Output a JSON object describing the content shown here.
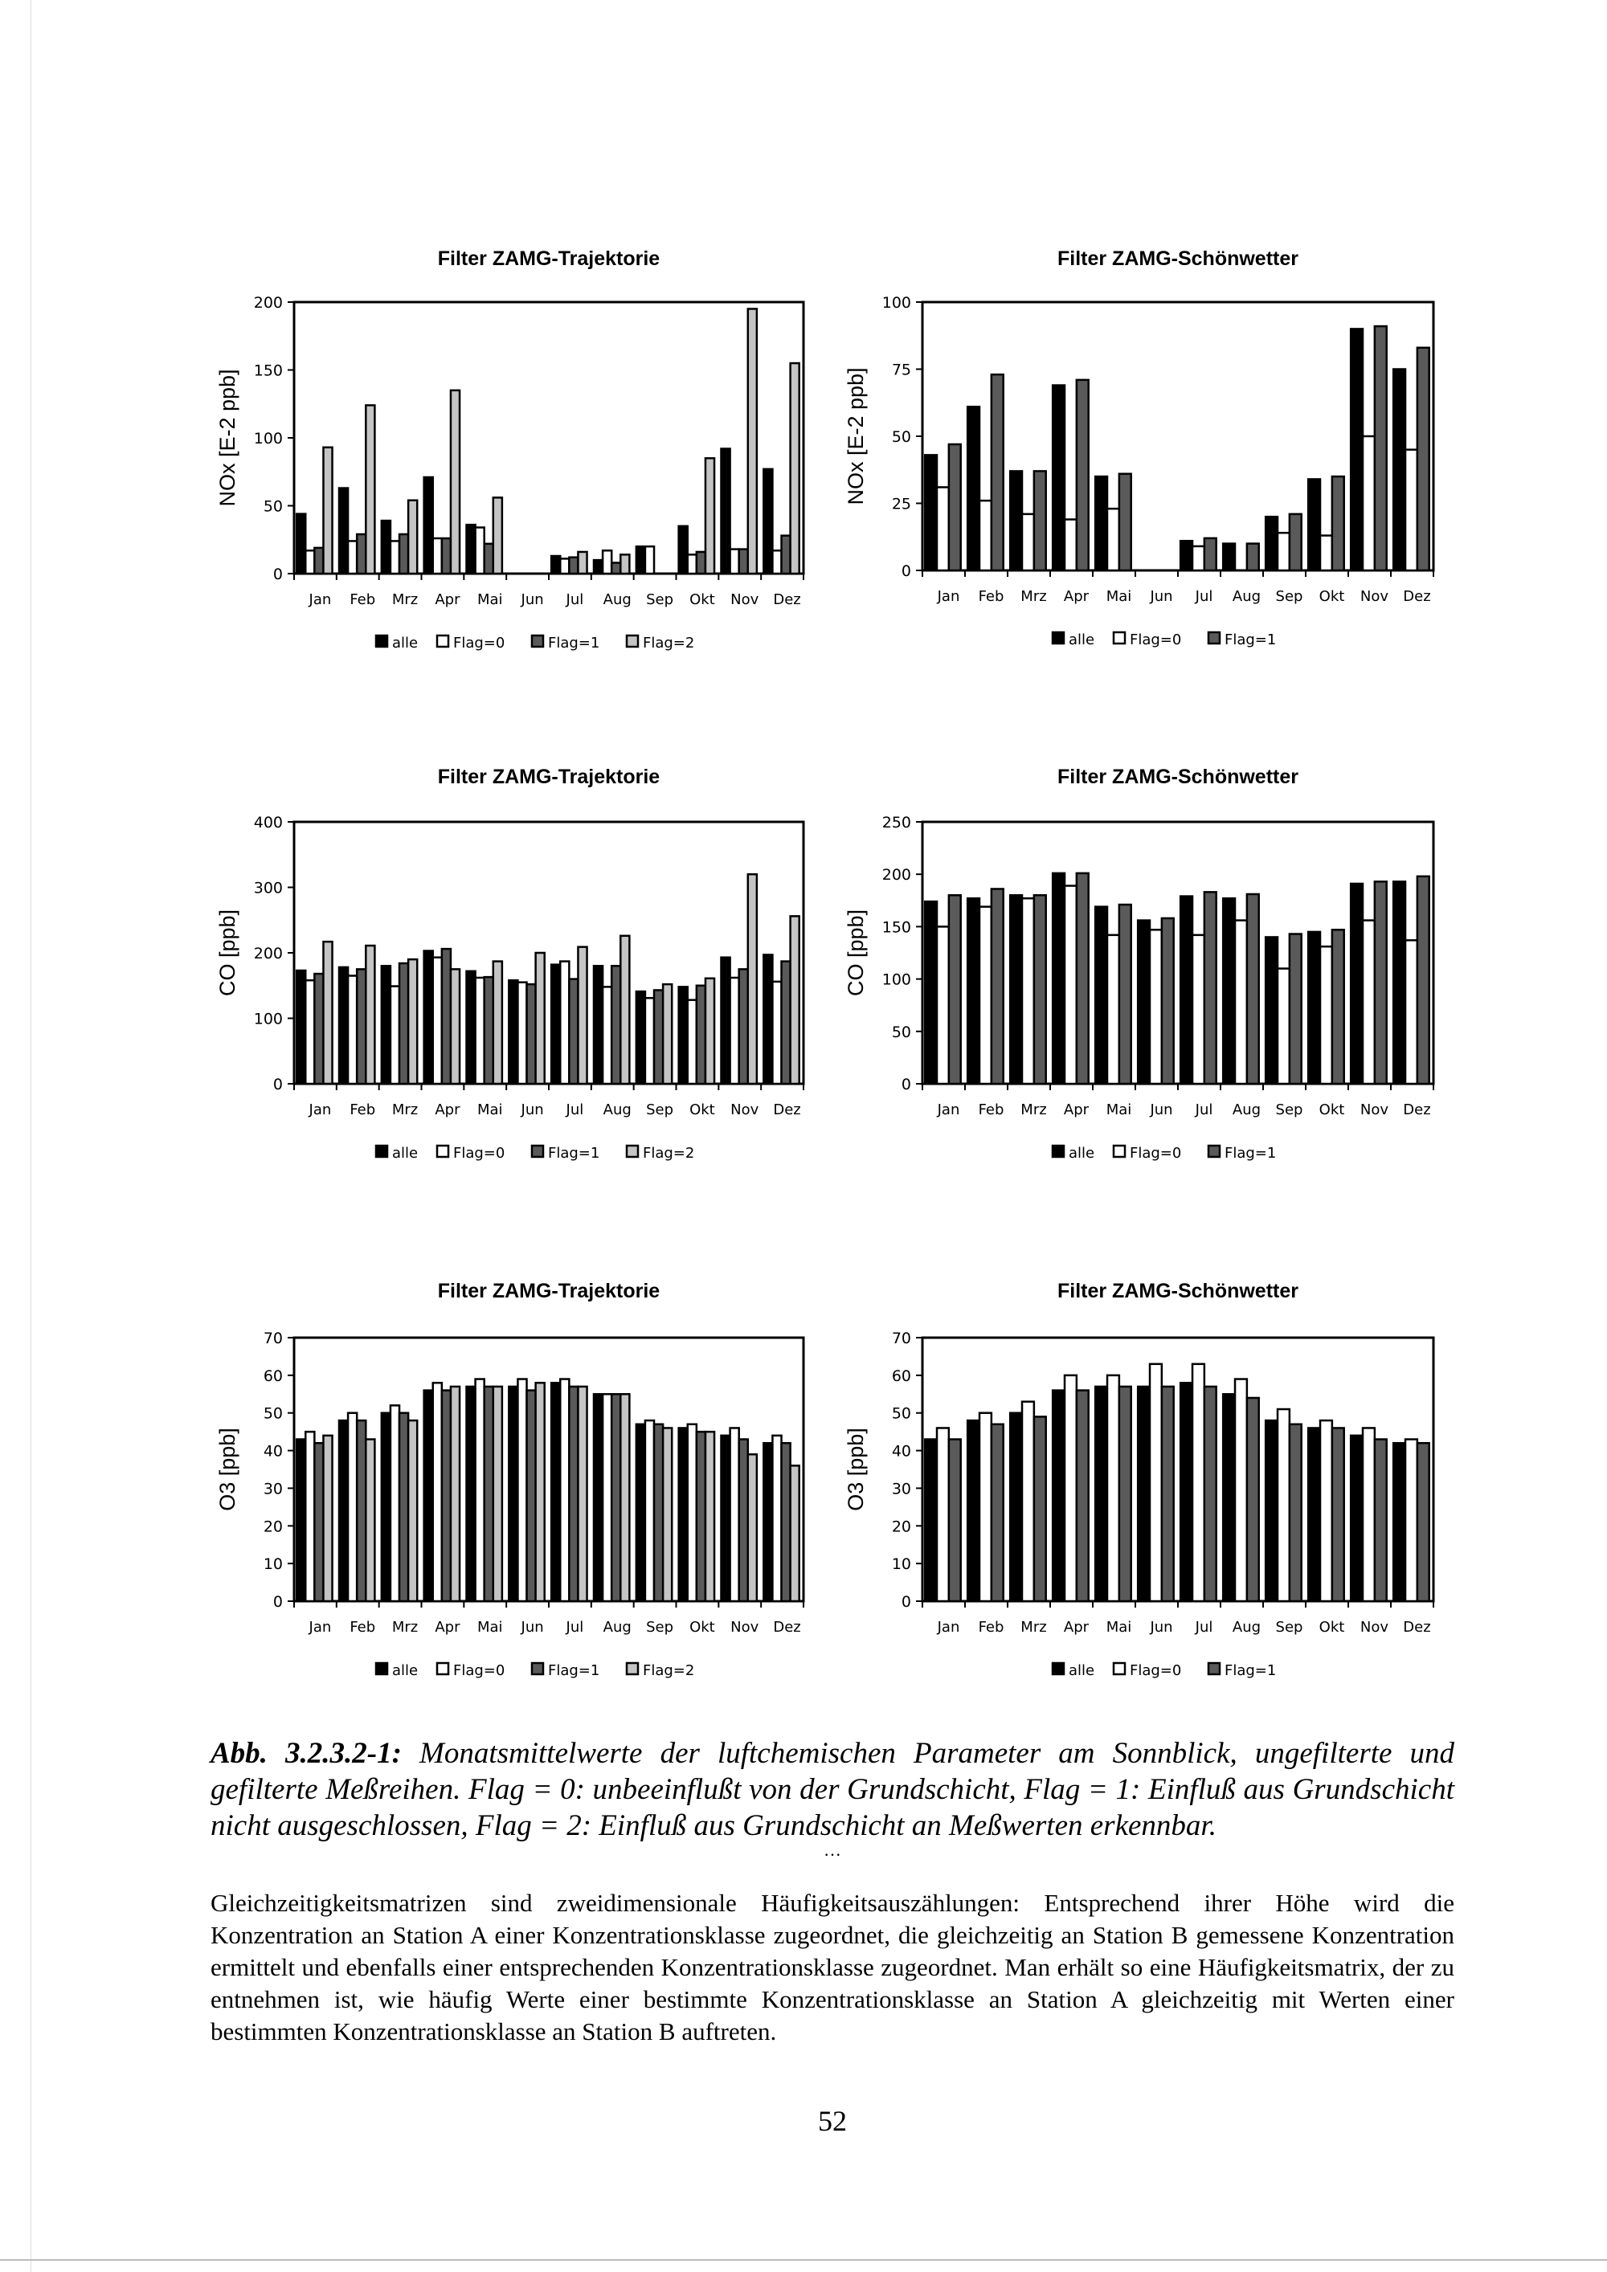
{
  "months": [
    "Jan",
    "Feb",
    "Mrz",
    "Apr",
    "Mai",
    "Jun",
    "Jul",
    "Aug",
    "Sep",
    "Okt",
    "Nov",
    "Dez"
  ],
  "colors": {
    "alle": "#000000",
    "flag0": "#ffffff",
    "flag1": "#5a5a5a",
    "flag2": "#c4c4c4"
  },
  "chart_data": [
    {
      "type": "bar",
      "title": "Filter ZAMG-Trajektorie",
      "ylabel": "NOx [E-2 ppb]",
      "ylim": [
        0,
        200
      ],
      "yticks": [
        0,
        50,
        100,
        150,
        200
      ],
      "ytick_labels": [
        "0",
        "50",
        "100",
        "150",
        "200"
      ],
      "legend": [
        "alle",
        "Flag=0",
        "Flag=1",
        "Flag=2"
      ],
      "legend_position": "bottom",
      "series": [
        {
          "name": "alle",
          "values": [
            44,
            63,
            39,
            71,
            36,
            0,
            13,
            10,
            20,
            35,
            92,
            77
          ]
        },
        {
          "name": "Flag=0",
          "values": [
            17,
            24,
            24,
            26,
            34,
            0,
            11,
            17,
            20,
            14,
            18,
            17
          ]
        },
        {
          "name": "Flag=1",
          "values": [
            19,
            29,
            29,
            26,
            22,
            0,
            12,
            8,
            0,
            16,
            18,
            28
          ]
        },
        {
          "name": "Flag=2",
          "values": [
            93,
            124,
            54,
            135,
            56,
            0,
            16,
            14,
            0,
            85,
            195,
            155
          ]
        }
      ]
    },
    {
      "type": "bar",
      "title": "Filter ZAMG-Schönwetter",
      "ylabel": "NOx [E-2 ppb]",
      "ylim": [
        0,
        100
      ],
      "yticks": [
        0,
        25,
        50,
        75,
        100
      ],
      "ytick_labels": [
        "0",
        "25",
        "50",
        "75",
        "100"
      ],
      "legend": [
        "alle",
        "Flag=0",
        "Flag=1"
      ],
      "legend_position": "bottom",
      "series": [
        {
          "name": "alle",
          "values": [
            43,
            61,
            37,
            69,
            35,
            0,
            11,
            10,
            20,
            34,
            90,
            75
          ]
        },
        {
          "name": "Flag=0",
          "values": [
            31,
            26,
            21,
            19,
            23,
            0,
            9,
            0,
            14,
            13,
            50,
            45
          ]
        },
        {
          "name": "Flag=1",
          "values": [
            47,
            73,
            37,
            71,
            36,
            0,
            12,
            10,
            21,
            35,
            91,
            83
          ]
        }
      ]
    },
    {
      "type": "bar",
      "title": "Filter ZAMG-Trajektorie",
      "ylabel": "CO [ppb]",
      "ylim": [
        0,
        400
      ],
      "yticks": [
        0,
        100,
        200,
        300,
        400
      ],
      "ytick_labels": [
        "0",
        "100",
        "200",
        "300",
        "400"
      ],
      "legend": [
        "alle",
        "Flag=0",
        "Flag=1",
        "Flag=2"
      ],
      "legend_position": "bottom",
      "series": [
        {
          "name": "alle",
          "values": [
            173,
            178,
            180,
            203,
            172,
            158,
            182,
            180,
            141,
            148,
            193,
            197
          ]
        },
        {
          "name": "Flag=0",
          "values": [
            158,
            165,
            149,
            193,
            162,
            155,
            187,
            148,
            131,
            128,
            162,
            156
          ]
        },
        {
          "name": "Flag=1",
          "values": [
            168,
            175,
            184,
            206,
            163,
            152,
            160,
            180,
            143,
            150,
            175,
            187
          ]
        },
        {
          "name": "Flag=2",
          "values": [
            217,
            211,
            190,
            175,
            187,
            200,
            209,
            226,
            152,
            161,
            320,
            256
          ]
        }
      ]
    },
    {
      "type": "bar",
      "title": "Filter ZAMG-Schönwetter",
      "ylabel": "CO [ppb]",
      "ylim": [
        0,
        250
      ],
      "yticks": [
        0,
        50,
        100,
        150,
        200,
        250
      ],
      "ytick_labels": [
        "0",
        "50",
        "100",
        "150",
        "200",
        "250"
      ],
      "legend": [
        "alle",
        "Flag=0",
        "Flag=1"
      ],
      "legend_position": "bottom",
      "series": [
        {
          "name": "alle",
          "values": [
            174,
            177,
            180,
            201,
            169,
            156,
            179,
            177,
            140,
            145,
            191,
            193
          ]
        },
        {
          "name": "Flag=0",
          "values": [
            150,
            169,
            177,
            189,
            142,
            147,
            142,
            156,
            110,
            131,
            156,
            137
          ]
        },
        {
          "name": "Flag=1",
          "values": [
            180,
            186,
            180,
            201,
            171,
            158,
            183,
            181,
            143,
            147,
            193,
            198
          ]
        }
      ]
    },
    {
      "type": "bar",
      "title": "Filter ZAMG-Trajektorie",
      "ylabel": "O3 [ppb]",
      "ylim": [
        0,
        70
      ],
      "yticks": [
        0,
        10,
        20,
        30,
        40,
        50,
        60,
        70
      ],
      "ytick_labels": [
        "0",
        "10",
        "20",
        "30",
        "40",
        "50",
        "60",
        "70"
      ],
      "legend": [
        "alle",
        "Flag=0",
        "Flag=1",
        "Flag=2"
      ],
      "legend_position": "bottom",
      "series": [
        {
          "name": "alle",
          "values": [
            43,
            48,
            50,
            56,
            57,
            57,
            58,
            55,
            47,
            46,
            44,
            42
          ]
        },
        {
          "name": "Flag=0",
          "values": [
            45,
            50,
            52,
            58,
            59,
            59,
            59,
            55,
            48,
            47,
            46,
            44
          ]
        },
        {
          "name": "Flag=1",
          "values": [
            42,
            48,
            50,
            56,
            57,
            56,
            57,
            55,
            47,
            45,
            43,
            42
          ]
        },
        {
          "name": "Flag=2",
          "values": [
            44,
            43,
            48,
            57,
            57,
            58,
            57,
            55,
            46,
            45,
            39,
            36
          ]
        }
      ]
    },
    {
      "type": "bar",
      "title": "Filter ZAMG-Schönwetter",
      "ylabel": "O3 [ppb]",
      "ylim": [
        0,
        70
      ],
      "yticks": [
        0,
        10,
        20,
        30,
        40,
        50,
        60,
        70
      ],
      "ytick_labels": [
        "0",
        "10",
        "20",
        "30",
        "40",
        "50",
        "60",
        "70"
      ],
      "legend": [
        "alle",
        "Flag=0",
        "Flag=1"
      ],
      "legend_position": "bottom",
      "series": [
        {
          "name": "alle",
          "values": [
            43,
            48,
            50,
            56,
            57,
            57,
            58,
            55,
            48,
            46,
            44,
            42
          ]
        },
        {
          "name": "Flag=0",
          "values": [
            46,
            50,
            53,
            60,
            60,
            63,
            63,
            59,
            51,
            48,
            46,
            43
          ]
        },
        {
          "name": "Flag=1",
          "values": [
            43,
            47,
            49,
            56,
            57,
            57,
            57,
            54,
            47,
            46,
            43,
            42
          ]
        }
      ]
    }
  ],
  "caption": {
    "label": "Abb. 3.2.3.2-1:",
    "text": "Monatsmittelwerte der luftchemischen Parameter am Sonnblick, ungefilterte und gefilterte Meßreihen. Flag = 0: unbeeinflußt von der Grundschicht, Flag = 1: Einfluß aus Grundschicht nicht ausgeschlossen, Flag = 2: Einfluß aus Grundschicht an Meßwerten erkennbar."
  },
  "body_text": "Gleichzeitigkeitsmatrizen sind zweidimensionale Häufigkeitsauszählungen: Entsprechend ihrer Höhe wird die Konzentration an Station A einer Konzentrationsklasse zugeordnet, die gleichzeitig an Station B gemessene Konzentration ermittelt und ebenfalls einer entsprechenden Konzentrationsklasse zugeordnet. Man erhält so eine Häufigkeitsmatrix, der zu entnehmen ist, wie häufig Werte einer bestimmte Konzentrationsklasse an Station A gleichzeitig mit Werten einer bestimmten Konzentrationsklasse an Station B auftreten.",
  "page_number": "52"
}
